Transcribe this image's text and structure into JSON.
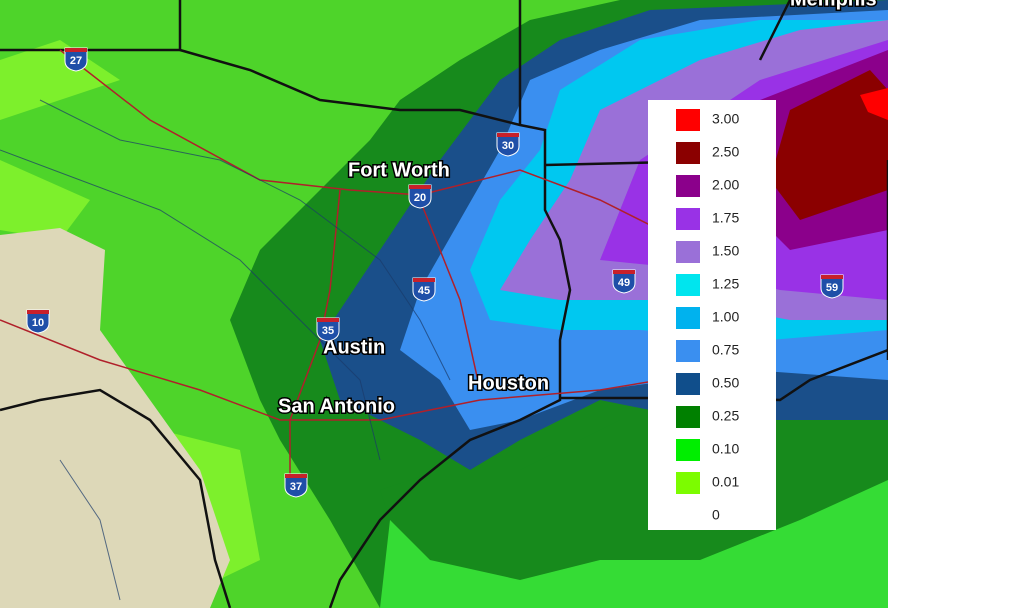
{
  "cities": [
    {
      "label": "Memphis"
    },
    {
      "label": "Fort Worth"
    },
    {
      "label": "Austin"
    },
    {
      "label": "San Antonio"
    },
    {
      "label": "Houston"
    }
  ],
  "interstates": [
    {
      "label": "27"
    },
    {
      "label": "30"
    },
    {
      "label": "20"
    },
    {
      "label": "45"
    },
    {
      "label": "35"
    },
    {
      "label": "10"
    },
    {
      "label": "37"
    },
    {
      "label": "49"
    },
    {
      "label": "59"
    }
  ],
  "legend": {
    "items": [
      {
        "label": "3.00",
        "color": "#ff0000"
      },
      {
        "label": "2.50",
        "color": "#8b0000"
      },
      {
        "label": "2.00",
        "color": "#8b008b"
      },
      {
        "label": "1.75",
        "color": "#9932e6"
      },
      {
        "label": "1.50",
        "color": "#9a70d8"
      },
      {
        "label": "1.25",
        "color": "#00e5ee"
      },
      {
        "label": "1.00",
        "color": "#00b2ee"
      },
      {
        "label": "0.75",
        "color": "#3a8ff0"
      },
      {
        "label": "0.50",
        "color": "#104e8b"
      },
      {
        "label": "0.25",
        "color": "#008000"
      },
      {
        "label": "0.10",
        "color": "#00ee00"
      },
      {
        "label": "0.01",
        "color": "#7cfc00"
      },
      {
        "label": "0",
        "color": "#ffffff"
      }
    ]
  }
}
